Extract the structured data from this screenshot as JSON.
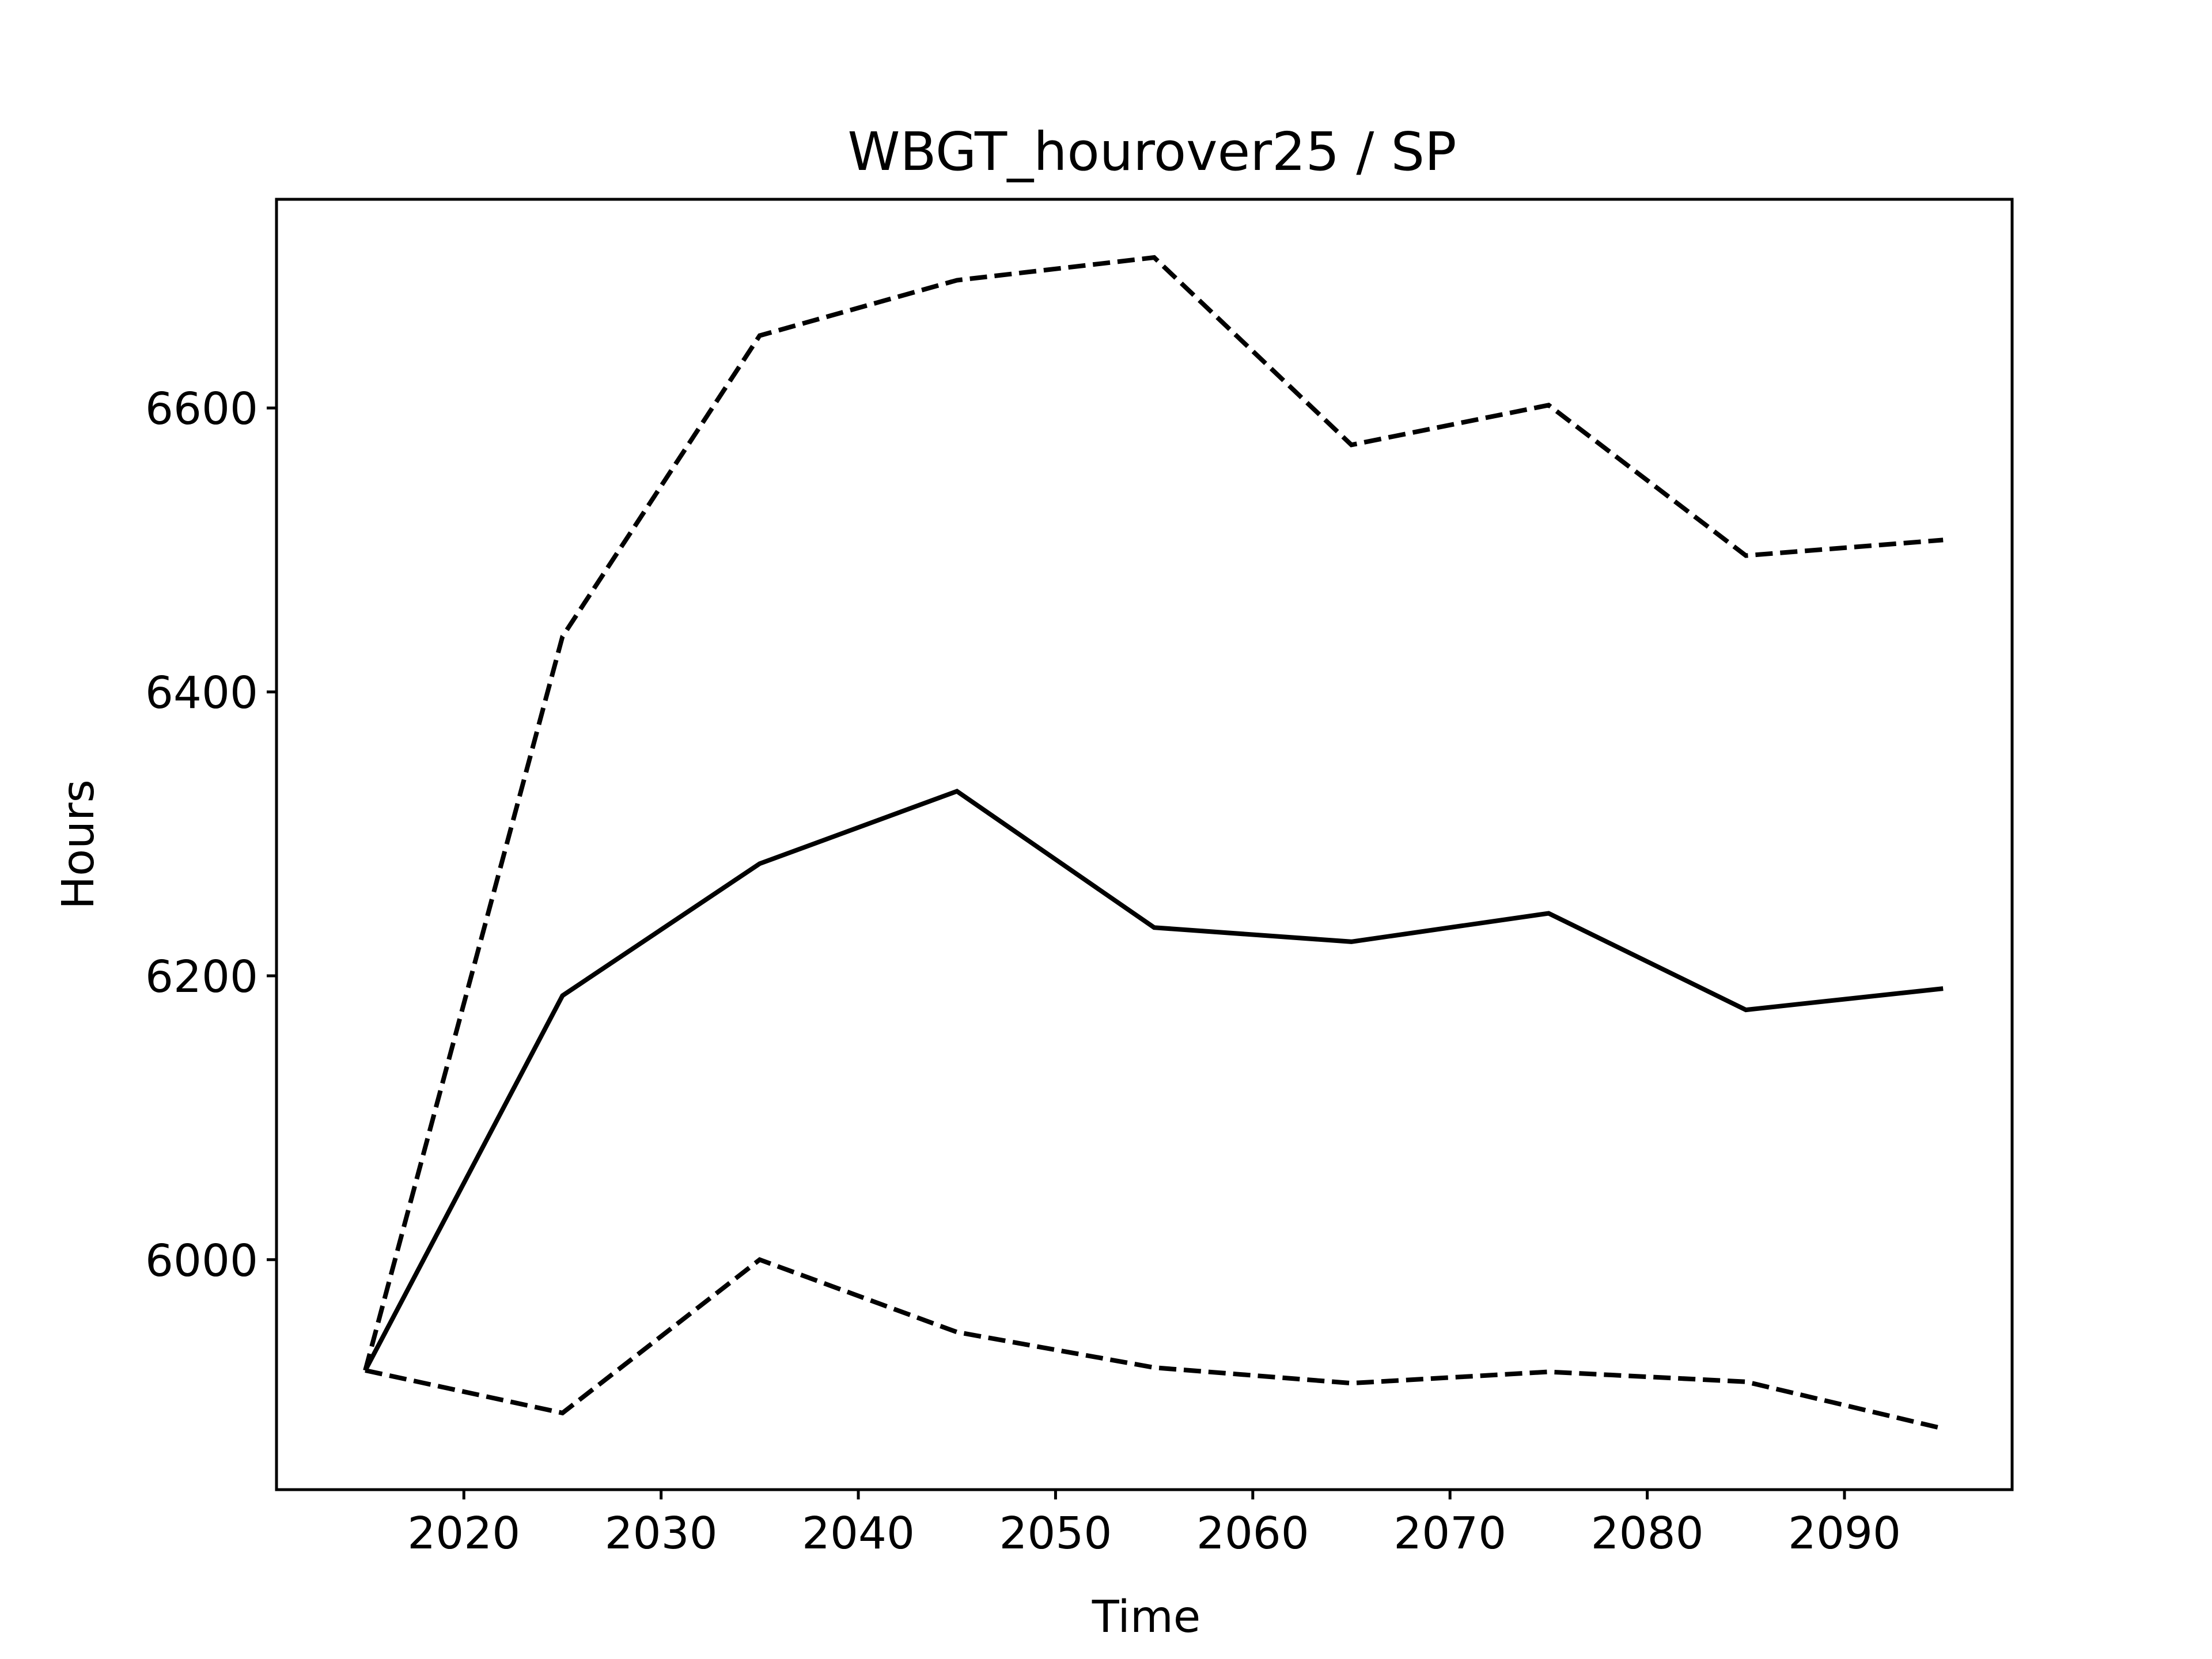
{
  "chart_data": {
    "type": "line",
    "title": "WBGT_hourover25 / SP",
    "xlabel": "Time",
    "ylabel": "Hours",
    "x": [
      2015,
      2025,
      2035,
      2045,
      2055,
      2065,
      2075,
      2085,
      2095
    ],
    "xlim": [
      2010.5,
      2098.5
    ],
    "ylim": [
      5838,
      6747
    ],
    "xticks": [
      2020,
      2030,
      2040,
      2050,
      2060,
      2070,
      2080,
      2090
    ],
    "yticks": [
      6000,
      6200,
      6400,
      6600
    ],
    "grid": false,
    "series": [
      {
        "values": [
          5922,
          6186,
          6279,
          6330,
          6234,
          6224,
          6244,
          6176,
          6191
        ],
        "style": "solid",
        "color": "#000000"
      },
      {
        "values": [
          5922,
          6439,
          6651,
          6690,
          6706,
          6574,
          6602,
          6496,
          6507
        ],
        "style": "dashed",
        "color": "#000000"
      },
      {
        "values": [
          5922,
          5892,
          6000,
          5949,
          5924,
          5913,
          5921,
          5914,
          5881
        ],
        "style": "dashed",
        "color": "#000000"
      }
    ]
  }
}
